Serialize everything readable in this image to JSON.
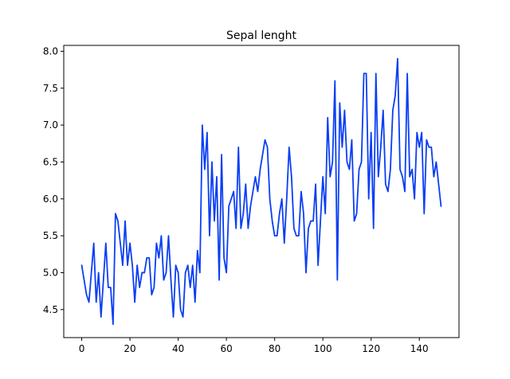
{
  "chart_data": {
    "type": "line",
    "title": "Sepal lenght",
    "xlabel": "",
    "ylabel": "",
    "xlim": [
      -7.45,
      156.45
    ],
    "ylim": [
      4.12,
      8.08
    ],
    "xticks": [
      0,
      20,
      40,
      60,
      80,
      100,
      120,
      140
    ],
    "yticks": [
      4.5,
      5.0,
      5.5,
      6.0,
      6.5,
      7.0,
      7.5,
      8.0
    ],
    "xtick_labels": [
      "0",
      "20",
      "40",
      "60",
      "80",
      "100",
      "120",
      "140"
    ],
    "ytick_labels": [
      "4.5",
      "5.0",
      "5.5",
      "6.0",
      "6.5",
      "7.0",
      "7.5",
      "8.0"
    ],
    "grid": false,
    "series": [
      {
        "color": "#0a3ef5",
        "x": [
          0,
          1,
          2,
          3,
          4,
          5,
          6,
          7,
          8,
          9,
          10,
          11,
          12,
          13,
          14,
          15,
          16,
          17,
          18,
          19,
          20,
          21,
          22,
          23,
          24,
          25,
          26,
          27,
          28,
          29,
          30,
          31,
          32,
          33,
          34,
          35,
          36,
          37,
          38,
          39,
          40,
          41,
          42,
          43,
          44,
          45,
          46,
          47,
          48,
          49,
          50,
          51,
          52,
          53,
          54,
          55,
          56,
          57,
          58,
          59,
          60,
          61,
          62,
          63,
          64,
          65,
          66,
          67,
          68,
          69,
          70,
          71,
          72,
          73,
          74,
          75,
          76,
          77,
          78,
          79,
          80,
          81,
          82,
          83,
          84,
          85,
          86,
          87,
          88,
          89,
          90,
          91,
          92,
          93,
          94,
          95,
          96,
          97,
          98,
          99,
          100,
          101,
          102,
          103,
          104,
          105,
          106,
          107,
          108,
          109,
          110,
          111,
          112,
          113,
          114,
          115,
          116,
          117,
          118,
          119,
          120,
          121,
          122,
          123,
          124,
          125,
          126,
          127,
          128,
          129,
          130,
          131,
          132,
          133,
          134,
          135,
          136,
          137,
          138,
          139,
          140,
          141,
          142,
          143,
          144,
          145,
          146,
          147,
          148,
          149
        ],
        "values": [
          5.1,
          4.9,
          4.7,
          4.6,
          5.0,
          5.4,
          4.6,
          5.0,
          4.4,
          4.9,
          5.4,
          4.8,
          4.8,
          4.3,
          5.8,
          5.7,
          5.4,
          5.1,
          5.7,
          5.1,
          5.4,
          5.1,
          4.6,
          5.1,
          4.8,
          5.0,
          5.0,
          5.2,
          5.2,
          4.7,
          4.8,
          5.4,
          5.2,
          5.5,
          4.9,
          5.0,
          5.5,
          4.9,
          4.4,
          5.1,
          5.0,
          4.5,
          4.4,
          5.0,
          5.1,
          4.8,
          5.1,
          4.6,
          5.3,
          5.0,
          7.0,
          6.4,
          6.9,
          5.5,
          6.5,
          5.7,
          6.3,
          4.9,
          6.6,
          5.2,
          5.0,
          5.9,
          6.0,
          6.1,
          5.6,
          6.7,
          5.6,
          5.8,
          6.2,
          5.6,
          5.9,
          6.1,
          6.3,
          6.1,
          6.4,
          6.6,
          6.8,
          6.7,
          6.0,
          5.7,
          5.5,
          5.5,
          5.8,
          6.0,
          5.4,
          6.0,
          6.7,
          6.3,
          5.6,
          5.5,
          5.5,
          6.1,
          5.8,
          5.0,
          5.6,
          5.7,
          5.7,
          6.2,
          5.1,
          5.7,
          6.3,
          5.8,
          7.1,
          6.3,
          6.5,
          7.6,
          4.9,
          7.3,
          6.7,
          7.2,
          6.5,
          6.4,
          6.8,
          5.7,
          5.8,
          6.4,
          6.5,
          7.7,
          7.7,
          6.0,
          6.9,
          5.6,
          7.7,
          6.3,
          6.7,
          7.2,
          6.2,
          6.1,
          6.4,
          7.2,
          7.4,
          7.9,
          6.4,
          6.3,
          6.1,
          7.7,
          6.3,
          6.4,
          6.0,
          6.9,
          6.7,
          6.9,
          5.8,
          6.8,
          6.7,
          6.7,
          6.3,
          6.5,
          6.2,
          5.9
        ]
      }
    ]
  }
}
